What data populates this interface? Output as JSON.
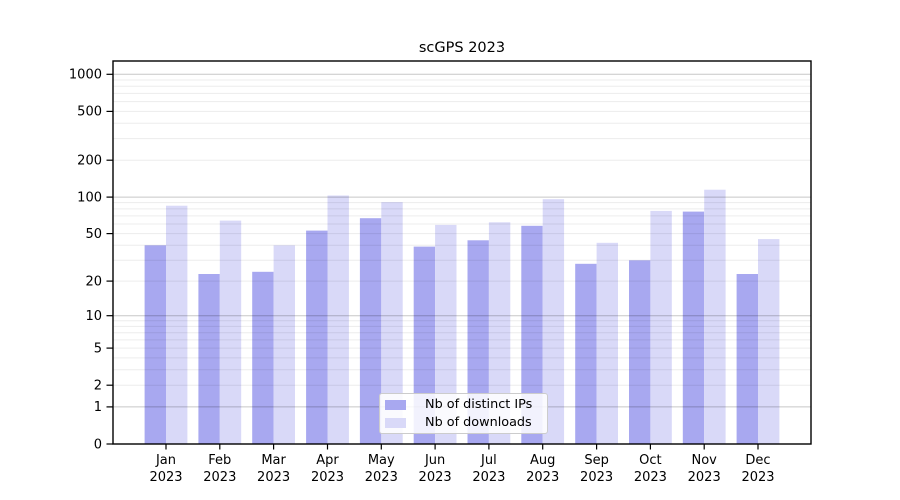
{
  "chart_data": {
    "type": "bar",
    "title": "scGPS 2023",
    "categories": [
      "Jan 2023",
      "Feb 2023",
      "Mar 2023",
      "Apr 2023",
      "May 2023",
      "Jun 2023",
      "Jul 2023",
      "Aug 2023",
      "Sep 2023",
      "Oct 2023",
      "Nov 2023",
      "Dec 2023"
    ],
    "series": [
      {
        "name": "Nb of distinct IPs",
        "color": "#a8a8f0",
        "values": [
          40,
          23,
          24,
          53,
          67,
          39,
          44,
          58,
          28,
          30,
          76,
          23
        ]
      },
      {
        "name": "Nb of downloads",
        "color": "#d9d9f8",
        "values": [
          85,
          64,
          40,
          103,
          91,
          59,
          62,
          96,
          42,
          77,
          115,
          45
        ]
      }
    ],
    "yscale": "log1p",
    "y_tick_values": [
      0,
      1,
      2,
      5,
      10,
      20,
      50,
      100,
      200,
      500,
      1000
    ],
    "y_major_gridlines": [
      1,
      10,
      100,
      1000
    ],
    "y_minor_gridline_multiples": [
      2,
      3,
      4,
      5,
      6,
      7,
      8,
      9
    ],
    "ylim": [
      0,
      1285
    ],
    "grid": true,
    "legend_position": "lower center",
    "colors": {
      "frame": "#000000",
      "major_grid": "rgba(0,0,0,0.22)",
      "minor_grid": "rgba(0,0,0,0.075)"
    }
  }
}
